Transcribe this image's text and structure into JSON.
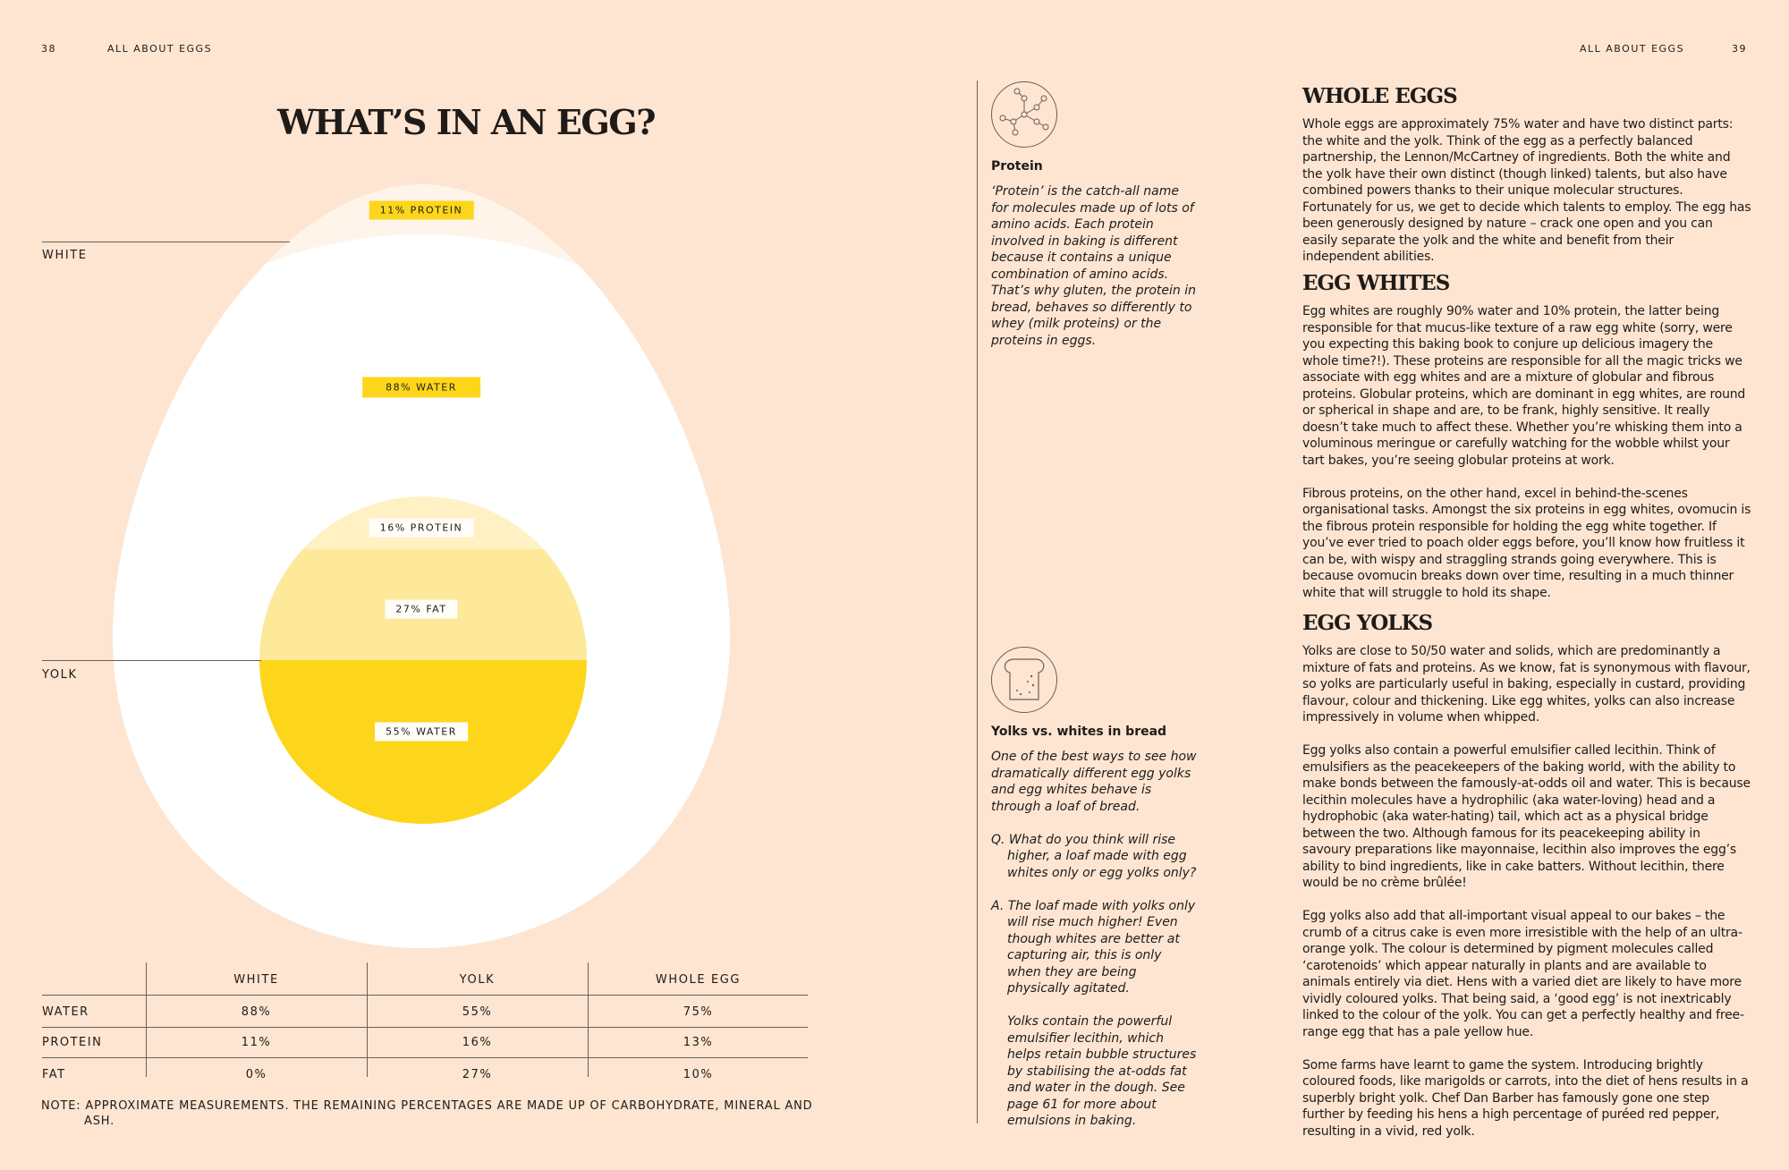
{
  "left_page": {
    "page_number": "38",
    "running_head": "ALL ABOUT EGGS",
    "title": "WHAT’S IN AN EGG?"
  },
  "right_page": {
    "page_number": "39",
    "running_head": "ALL ABOUT EGGS"
  },
  "egg_diagram": {
    "white_label": "WHITE",
    "yolk_label": "YOLK",
    "white_protein": "11% PROTEIN",
    "white_water": "88% WATER",
    "yolk_protein": "16% PROTEIN",
    "yolk_fat": "27% FAT",
    "yolk_water": "55% WATER",
    "colors": {
      "background": "#fde5d2",
      "white": "#ffffff",
      "white_protein_band": "#fff4ea",
      "yolk_protein": "#fff1c4",
      "yolk_fat": "#fee89a",
      "yolk_water": "#fdd61c",
      "chip": "#fdd61c"
    }
  },
  "composition_table": {
    "columns": [
      "WHITE",
      "YOLK",
      "WHOLE EGG"
    ],
    "rows": [
      {
        "label": "WATER",
        "white": "88%",
        "yolk": "55%",
        "whole": "75%"
      },
      {
        "label": "PROTEIN",
        "white": "11%",
        "yolk": "16%",
        "whole": "13%"
      },
      {
        "label": "FAT",
        "white": "0%",
        "yolk": "27%",
        "whole": "10%"
      }
    ],
    "note": "NOTE: APPROXIMATE MEASUREMENTS. THE REMAINING PERCENTAGES ARE MADE UP OF CARBOHYDRATE, MINERAL AND ASH."
  },
  "sidebar": {
    "protein": {
      "icon": "molecule-icon",
      "heading": "Protein",
      "text": "‘Protein’ is the catch-all name for molecules made up of lots of amino acids. Each protein involved in baking is different because it contains a unique combination of amino acids. That’s why gluten, the protein in bread, behaves so differently to whey (milk proteins) or the proteins in eggs."
    },
    "bread": {
      "icon": "bread-slice-icon",
      "heading": "Yolks vs. whites in bread",
      "intro": "One of the best ways to see how dramatically different egg yolks and egg whites behave is through a loaf of bread.",
      "question": "Q. What do you think will rise higher, a loaf made with egg whites only or egg yolks only?",
      "answer": "A. The loaf made with yolks only will rise much higher! Even though whites are better at capturing air, this is only when they are being physically agitated.",
      "followup": "Yolks contain the powerful emulsifier lecithin, which helps retain bubble structures by stabilising the at-odds fat and water in the dough. See page 61 for more about emulsions in baking."
    }
  },
  "sections": {
    "whole_eggs": {
      "heading": "WHOLE EGGS",
      "paragraphs": [
        "Whole eggs are approximately 75% water and have two distinct parts: the white and the yolk. Think of the egg as a perfectly balanced partnership, the Lennon/McCartney of ingredients. Both the white and the yolk have their own distinct (though linked) talents, but also have combined powers thanks to their unique molecular structures. Fortunately for us, we get to decide which talents to employ. The egg has been generously designed by nature – crack one open and you can easily separate the yolk and the white and benefit from their independent abilities."
      ]
    },
    "egg_whites": {
      "heading": "EGG WHITES",
      "paragraphs": [
        "Egg whites are roughly 90% water and 10% protein, the latter being responsible for that mucus-like texture of a raw egg white (sorry, were you expecting this baking book to conjure up delicious imagery the whole time?!). These proteins are responsible for all the magic tricks we associate with egg whites and are a mixture of globular and fibrous proteins. Globular proteins, which are dominant in egg whites, are round or spherical in shape and are, to be frank, highly sensitive. It really doesn’t take much to affect these. Whether you’re whisking them into a voluminous meringue or carefully watching for the wobble whilst your tart bakes, you’re seeing globular proteins at work.",
        "Fibrous proteins, on the other hand, excel in behind-the-scenes organisational tasks. Amongst the six proteins in egg whites, ovomucin is the fibrous protein responsible for holding the egg white together. If you’ve ever tried to poach older eggs before, you’ll know how fruitless it can be, with wispy and straggling strands going everywhere. This is because ovomucin breaks down over time, resulting in a much thinner white that will struggle to hold its shape."
      ]
    },
    "egg_yolks": {
      "heading": "EGG YOLKS",
      "paragraphs": [
        "Yolks are close to 50/50 water and solids, which are predominantly a mixture of fats and proteins. As we know, fat is synonymous with flavour, so yolks are particularly useful in baking, especially in custard, providing flavour, colour and thickening. Like egg whites, yolks can also increase impressively in volume when whipped.",
        "Egg yolks also contain a powerful emulsifier called lecithin. Think of emulsifiers as the peacekeepers of the baking world, with the ability to make bonds between the famously-at-odds oil and water. This is because lecithin molecules have a hydrophilic (aka water-loving) head and a hydrophobic (aka water-hating) tail, which act as a physical bridge between the two. Although famous for its peacekeeping ability in savoury preparations like mayonnaise, lecithin also improves the egg’s ability to bind ingredients, like in cake batters. Without lecithin, there would be no crème brûlée!",
        "Egg yolks also add that all-important visual appeal to our bakes – the crumb of a citrus cake is even more irresistible with the help of an ultra-orange yolk. The colour is determined by pigment molecules called ‘carotenoids’ which appear naturally in plants and are available to animals entirely via diet. Hens with a varied diet are likely to have more vividly coloured yolks. That being said, a ‘good egg’ is not inextricably linked to the colour of the yolk. You can get a perfectly healthy and free-range egg that has a pale yellow hue.",
        "Some farms have learnt to game the system. Introducing brightly coloured foods, like marigolds or carrots, into the diet of hens results in a superbly bright yolk. Chef Dan Barber has famously gone one step further by feeding his hens a high percentage of puréed red pepper, resulting in a vivid, red yolk."
      ]
    }
  }
}
